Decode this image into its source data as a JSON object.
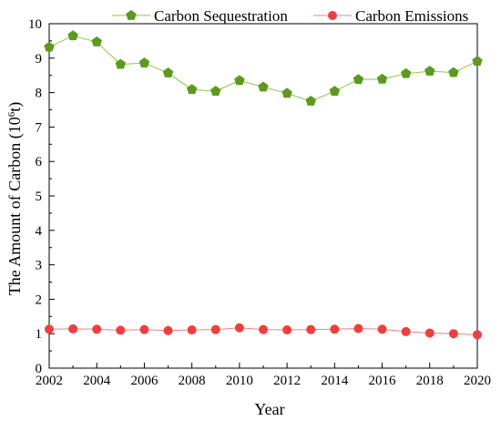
{
  "chart_data": {
    "type": "line",
    "xlabel": "Year",
    "ylabel_main": "The Amount of Carbon (10",
    "ylabel_sup": "6",
    "ylabel_end": "t)",
    "xlim": [
      2002,
      2020
    ],
    "ylim": [
      0,
      10
    ],
    "xticks": [
      2002,
      2004,
      2006,
      2008,
      2010,
      2012,
      2014,
      2016,
      2018,
      2020
    ],
    "yticks": [
      0,
      1,
      2,
      3,
      4,
      5,
      6,
      7,
      8,
      9,
      10
    ],
    "x": [
      2002,
      2003,
      2004,
      2005,
      2006,
      2007,
      2008,
      2009,
      2010,
      2011,
      2012,
      2013,
      2014,
      2015,
      2016,
      2017,
      2018,
      2019,
      2020
    ],
    "legend_position": "top",
    "grid": false,
    "series": [
      {
        "name": "Carbon Sequestration",
        "color": "#5b9a1f",
        "line_color": "#8dc63f",
        "marker": "pentagon",
        "values": [
          9.32,
          9.65,
          9.47,
          8.82,
          8.86,
          8.57,
          8.09,
          8.04,
          8.35,
          8.16,
          7.98,
          7.75,
          8.04,
          8.38,
          8.39,
          8.55,
          8.62,
          8.58,
          8.91
        ]
      },
      {
        "name": "Carbon Emissions",
        "color": "#ee3f3f",
        "line_color": "#f08080",
        "marker": "circle",
        "values": [
          1.13,
          1.14,
          1.13,
          1.1,
          1.12,
          1.09,
          1.11,
          1.12,
          1.17,
          1.12,
          1.11,
          1.12,
          1.13,
          1.15,
          1.13,
          1.06,
          1.02,
          1.0,
          0.97
        ]
      }
    ]
  }
}
